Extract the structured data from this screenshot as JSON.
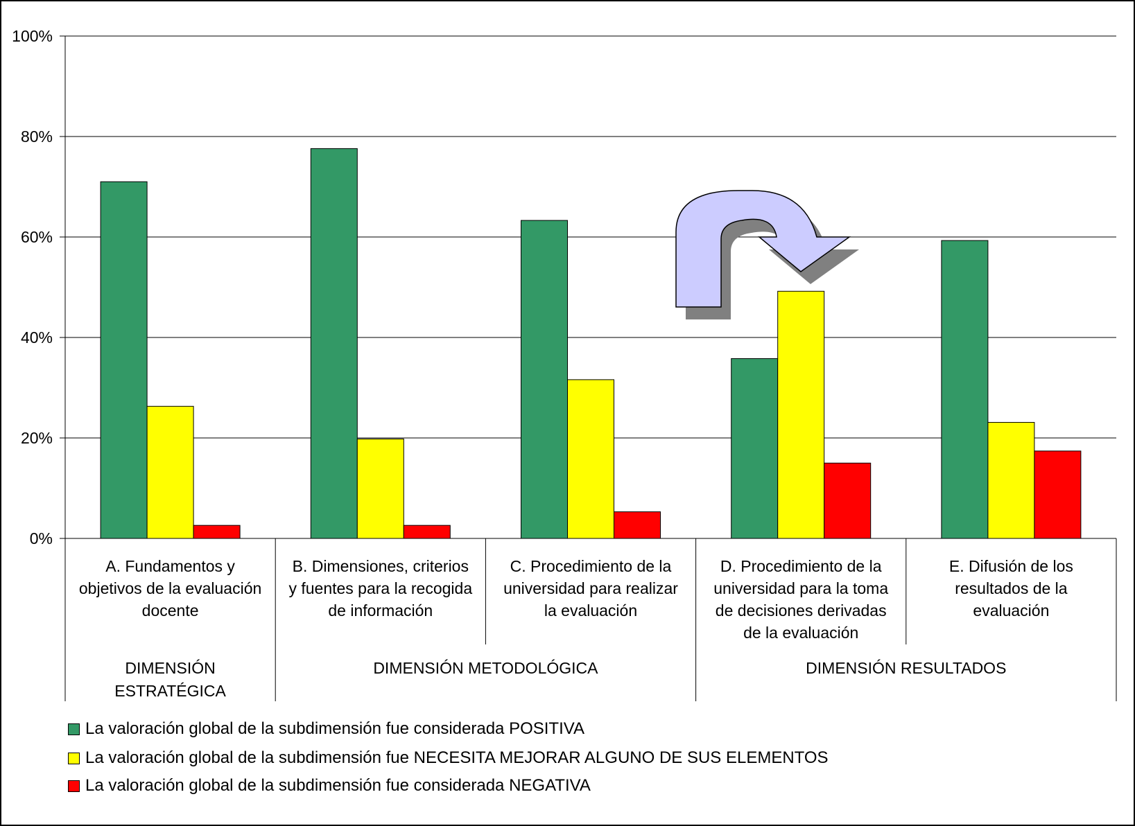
{
  "chart_data": {
    "type": "bar",
    "categories": [
      [
        "A. Fundamentos y",
        "objetivos de la evaluación",
        "docente"
      ],
      [
        "B. Dimensiones, criterios",
        "y fuentes para la recogida",
        "de información"
      ],
      [
        "C. Procedimiento de la",
        "universidad para realizar",
        "la evaluación"
      ],
      [
        "D. Procedimiento de la",
        "universidad para la toma",
        "de decisiones derivadas",
        "de la evaluación"
      ],
      [
        "E. Difusión de los",
        "resultados de la",
        "evaluación"
      ]
    ],
    "groups": [
      {
        "label": [
          "DIMENSIÓN",
          "ESTRATÉGICA"
        ],
        "span": [
          0,
          0
        ]
      },
      {
        "label": [
          "DIMENSIÓN METODOLÓGICA"
        ],
        "span": [
          1,
          2
        ]
      },
      {
        "label": [
          "DIMENSIÓN RESULTADOS"
        ],
        "span": [
          3,
          4
        ]
      }
    ],
    "series": [
      {
        "name": "La valoración global de la subdimensión fue considerada POSITIVA",
        "color": "#339966",
        "values": [
          71.0,
          77.6,
          63.3,
          35.8,
          59.3
        ]
      },
      {
        "name": "La valoración global de la subdimensión fue NECESITA MEJORAR ALGUNO DE SUS ELEMENTOS",
        "color": "#ffff00",
        "values": [
          26.3,
          19.8,
          31.6,
          49.2,
          23.1
        ]
      },
      {
        "name": "La valoración global de la subdimensión fue considerada NEGATIVA",
        "color": "#ff0000",
        "values": [
          2.6,
          2.6,
          5.3,
          15.0,
          17.4
        ]
      }
    ],
    "yticks": [
      "0%",
      "20%",
      "40%",
      "60%",
      "80%",
      "100%"
    ],
    "ylim": [
      0,
      100
    ],
    "grid": true,
    "legend": "bottom-left",
    "annotation": "curved-arrow pointing to category D"
  }
}
